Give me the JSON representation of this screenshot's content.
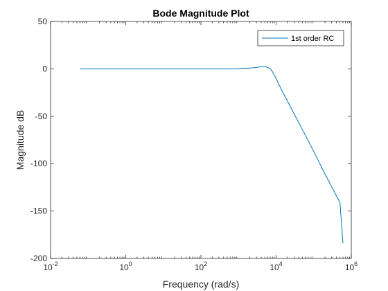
{
  "chart_data": {
    "type": "line",
    "title": "Bode Magnitude Plot",
    "xlabel": "Frequency (rad/s)",
    "ylabel": "Magnitude dB",
    "x_scale": "log",
    "xlim": [
      0.01,
      1000000
    ],
    "ylim": [
      -200,
      50
    ],
    "x_ticks": [
      {
        "value": 0.01,
        "base": "10",
        "exp": "-2"
      },
      {
        "value": 1,
        "base": "10",
        "exp": "0"
      },
      {
        "value": 100,
        "base": "10",
        "exp": "2"
      },
      {
        "value": 10000,
        "base": "10",
        "exp": "4"
      },
      {
        "value": 1000000,
        "base": "10",
        "exp": "6"
      }
    ],
    "y_ticks": [
      50,
      0,
      -50,
      -100,
      -150,
      -200
    ],
    "y_tick_labels": [
      "50",
      "0",
      "-50",
      "-100",
      "-150",
      "-200"
    ],
    "grid": false,
    "legend_position": "top-right",
    "series": [
      {
        "name": "1st order RC",
        "color": "#0072BD",
        "x": [
          0.06,
          1,
          10,
          100,
          700,
          1200,
          2000,
          3000,
          4000,
          5000,
          6000,
          7000,
          8000,
          10000,
          12000,
          20000,
          50000,
          100000,
          200000,
          500000,
          600000
        ],
        "y": [
          0,
          0,
          0,
          0,
          0,
          0.4,
          0.8,
          1.5,
          2.3,
          2.5,
          1.5,
          0,
          -3,
          -10,
          -17,
          -34,
          -64,
          -87,
          -111,
          -141,
          -184
        ]
      }
    ]
  }
}
